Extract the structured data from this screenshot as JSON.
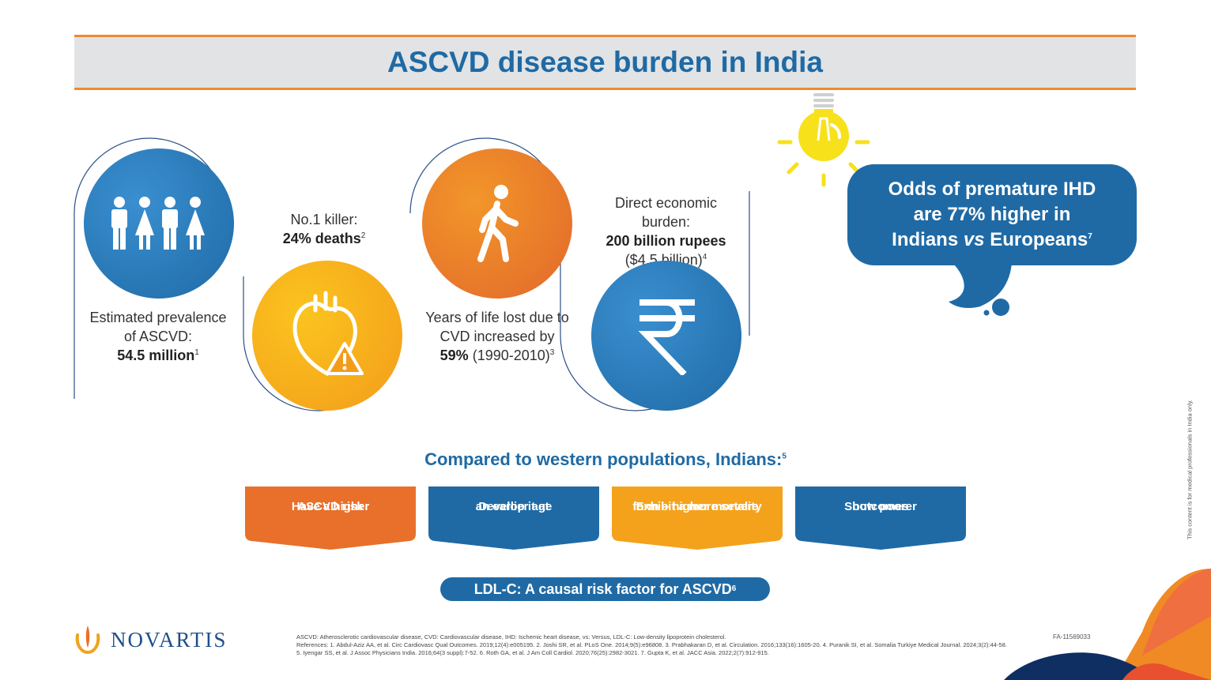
{
  "title": "ASCVD disease burden in India",
  "stats": [
    {
      "label": "Estimated prevalence of ASCVD:",
      "value": "54.5 million",
      "ref": "1"
    },
    {
      "label": "No.1 killer:",
      "value": "24% deaths",
      "ref": "2"
    },
    {
      "label_a": "Years of life lost due to CVD increased by",
      "value": "59%",
      "label_b": "(1990-2010)",
      "ref": "3"
    },
    {
      "label": "Direct economic burden:",
      "value": "200 billion rupees",
      "suffix": "($4.5 billion)",
      "ref": "4"
    }
  ],
  "bubble": {
    "line1": "Odds of premature IHD",
    "line2": "are 77% higher in",
    "line3_a": "Indians",
    "line3_vs": "vs",
    "line3_b": "Europeans",
    "ref": "7"
  },
  "comparison": {
    "heading": "Compared to western populations, Indians:",
    "ref": "5",
    "items": [
      {
        "line1": "Have a higher",
        "line2": "ASCVD risk"
      },
      {
        "line1": "Develop it at",
        "line2": "an earlier age"
      },
      {
        "line1": "Exhibit a more severe",
        "line2": "form – higher mortality"
      },
      {
        "line1": "Show poorer",
        "line2": "outcomes"
      }
    ]
  },
  "ldl": {
    "text": "LDL-C: A causal risk factor for ASCVD",
    "ref": "6"
  },
  "logo": "NOVARTIS",
  "code": "FA-11569033",
  "side_note": "This content is for medical professionals in India only.",
  "abbreviations": "ASCVD: Atherosclerotic cardiovascular disease, CVD: Cardiovascular disease, IHD: Ischemic heart disease, vs: Versus, LDL-C: Low-density lipoprotein cholesterol.",
  "references": "References: 1. Abdul-Aziz AA, et al. Circ Cardiovasc Qual Outcomes. 2019;12(4):e005195. 2. Joshi SR, et al. PLoS One. 2014;9(5):e96808. 3. Prabhakaran D, et al. Circulation. 2016;133(16):1605-20. 4. Puranik SI, et al. Somalia Turkiye Medical Journal. 2024;3(2):44-58. 5. Iyengar SS, et al. J Assoc Physicians India. 2016;64(3 suppl):7-52. 6. Roth GA, et al. J Am Coll Cardiol. 2020;76(25):2982-3021. 7. Gupta K, et al. JACC Asia. 2022;2(7):912-915.",
  "colors": {
    "blue": "#1f6aa5",
    "orange": "#e8702a",
    "amber": "#f4a21c",
    "yellow": "#f7e11a"
  },
  "icons": [
    "people-icon",
    "heart-warning-icon",
    "walking-person-icon",
    "rupee-icon",
    "lightbulb-icon",
    "novartis-logo-icon"
  ]
}
